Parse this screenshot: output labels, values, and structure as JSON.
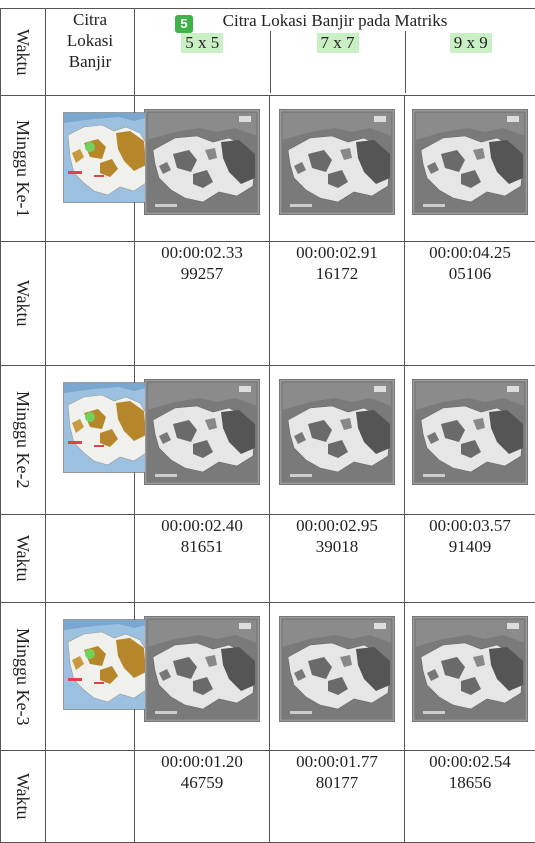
{
  "header": {
    "waktu": "Waktu",
    "citra_lokasi": "Citra Lokasi Banjir",
    "matriks_title": "Citra Lokasi Banjir pada Matriks",
    "badge": "5",
    "sizes": [
      "5 x 5",
      "7 x 7",
      "9 x 9"
    ]
  },
  "rows": [
    {
      "label": "Minggu Ke-1",
      "time_label": "Waktu",
      "times": [
        "00:00:02.3399257",
        "00:00:02.9116172",
        "00:00:04.2505106"
      ],
      "times_l1": [
        "00:00:02.33",
        "00:00:02.91",
        "00:00:04.25"
      ],
      "times_l2": [
        "99257",
        "16172",
        "05106"
      ]
    },
    {
      "label": "Minggu Ke-2",
      "time_label": "Waktu",
      "times_l1": [
        "00:00:02.40",
        "00:00:02.95",
        "00:00:03.57"
      ],
      "times_l2": [
        "81651",
        "39018",
        "91409"
      ]
    },
    {
      "label": "Minggu Ke-3",
      "time_label": "Waktu",
      "times_l1": [
        "00:00:01.20",
        "00:00:01.77",
        "00:00:02.54"
      ],
      "times_l2": [
        "46759",
        "80177",
        "18656"
      ]
    }
  ],
  "colors": {
    "map_sea": "#7aa7cf",
    "map_land": "#f0f0ec",
    "map_flood": "#b5862a",
    "map_gray_bg": "#8b8b8b",
    "map_gray_dark": "#555555",
    "badge": "#3fb24a",
    "highlight": "#c9efc4"
  }
}
